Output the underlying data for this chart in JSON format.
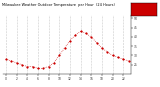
{
  "title": "Milwaukee Weather Outdoor Temperature  per Hour  (24 Hours)",
  "hours": [
    0,
    1,
    2,
    3,
    4,
    5,
    6,
    7,
    8,
    9,
    10,
    11,
    12,
    13,
    14,
    15,
    16,
    17,
    18,
    19,
    20,
    21,
    22,
    23
  ],
  "temps": [
    28,
    27,
    26,
    25,
    24,
    24,
    23,
    23,
    24,
    26,
    30,
    34,
    38,
    41,
    43,
    42,
    40,
    37,
    34,
    32,
    30,
    29,
    28,
    27
  ],
  "line_color": "#cc0000",
  "dot_color": "#cc0000",
  "bg_color": "#ffffff",
  "grid_color": "#bbbbbb",
  "title_color": "#000000",
  "ylim": [
    20,
    52
  ],
  "xlim": [
    -0.5,
    23.5
  ],
  "xticks": [
    0,
    2,
    4,
    6,
    8,
    10,
    12,
    14,
    16,
    18,
    20,
    22
  ],
  "xtick_labels": [
    "0",
    "2",
    "4",
    "6",
    "8",
    "10",
    "12",
    "14",
    "16",
    "18",
    "20",
    "22"
  ],
  "yticks": [
    25,
    30,
    35,
    40,
    45,
    50
  ],
  "legend_box_color": "#cc0000",
  "legend_label_color": "#ffffff"
}
